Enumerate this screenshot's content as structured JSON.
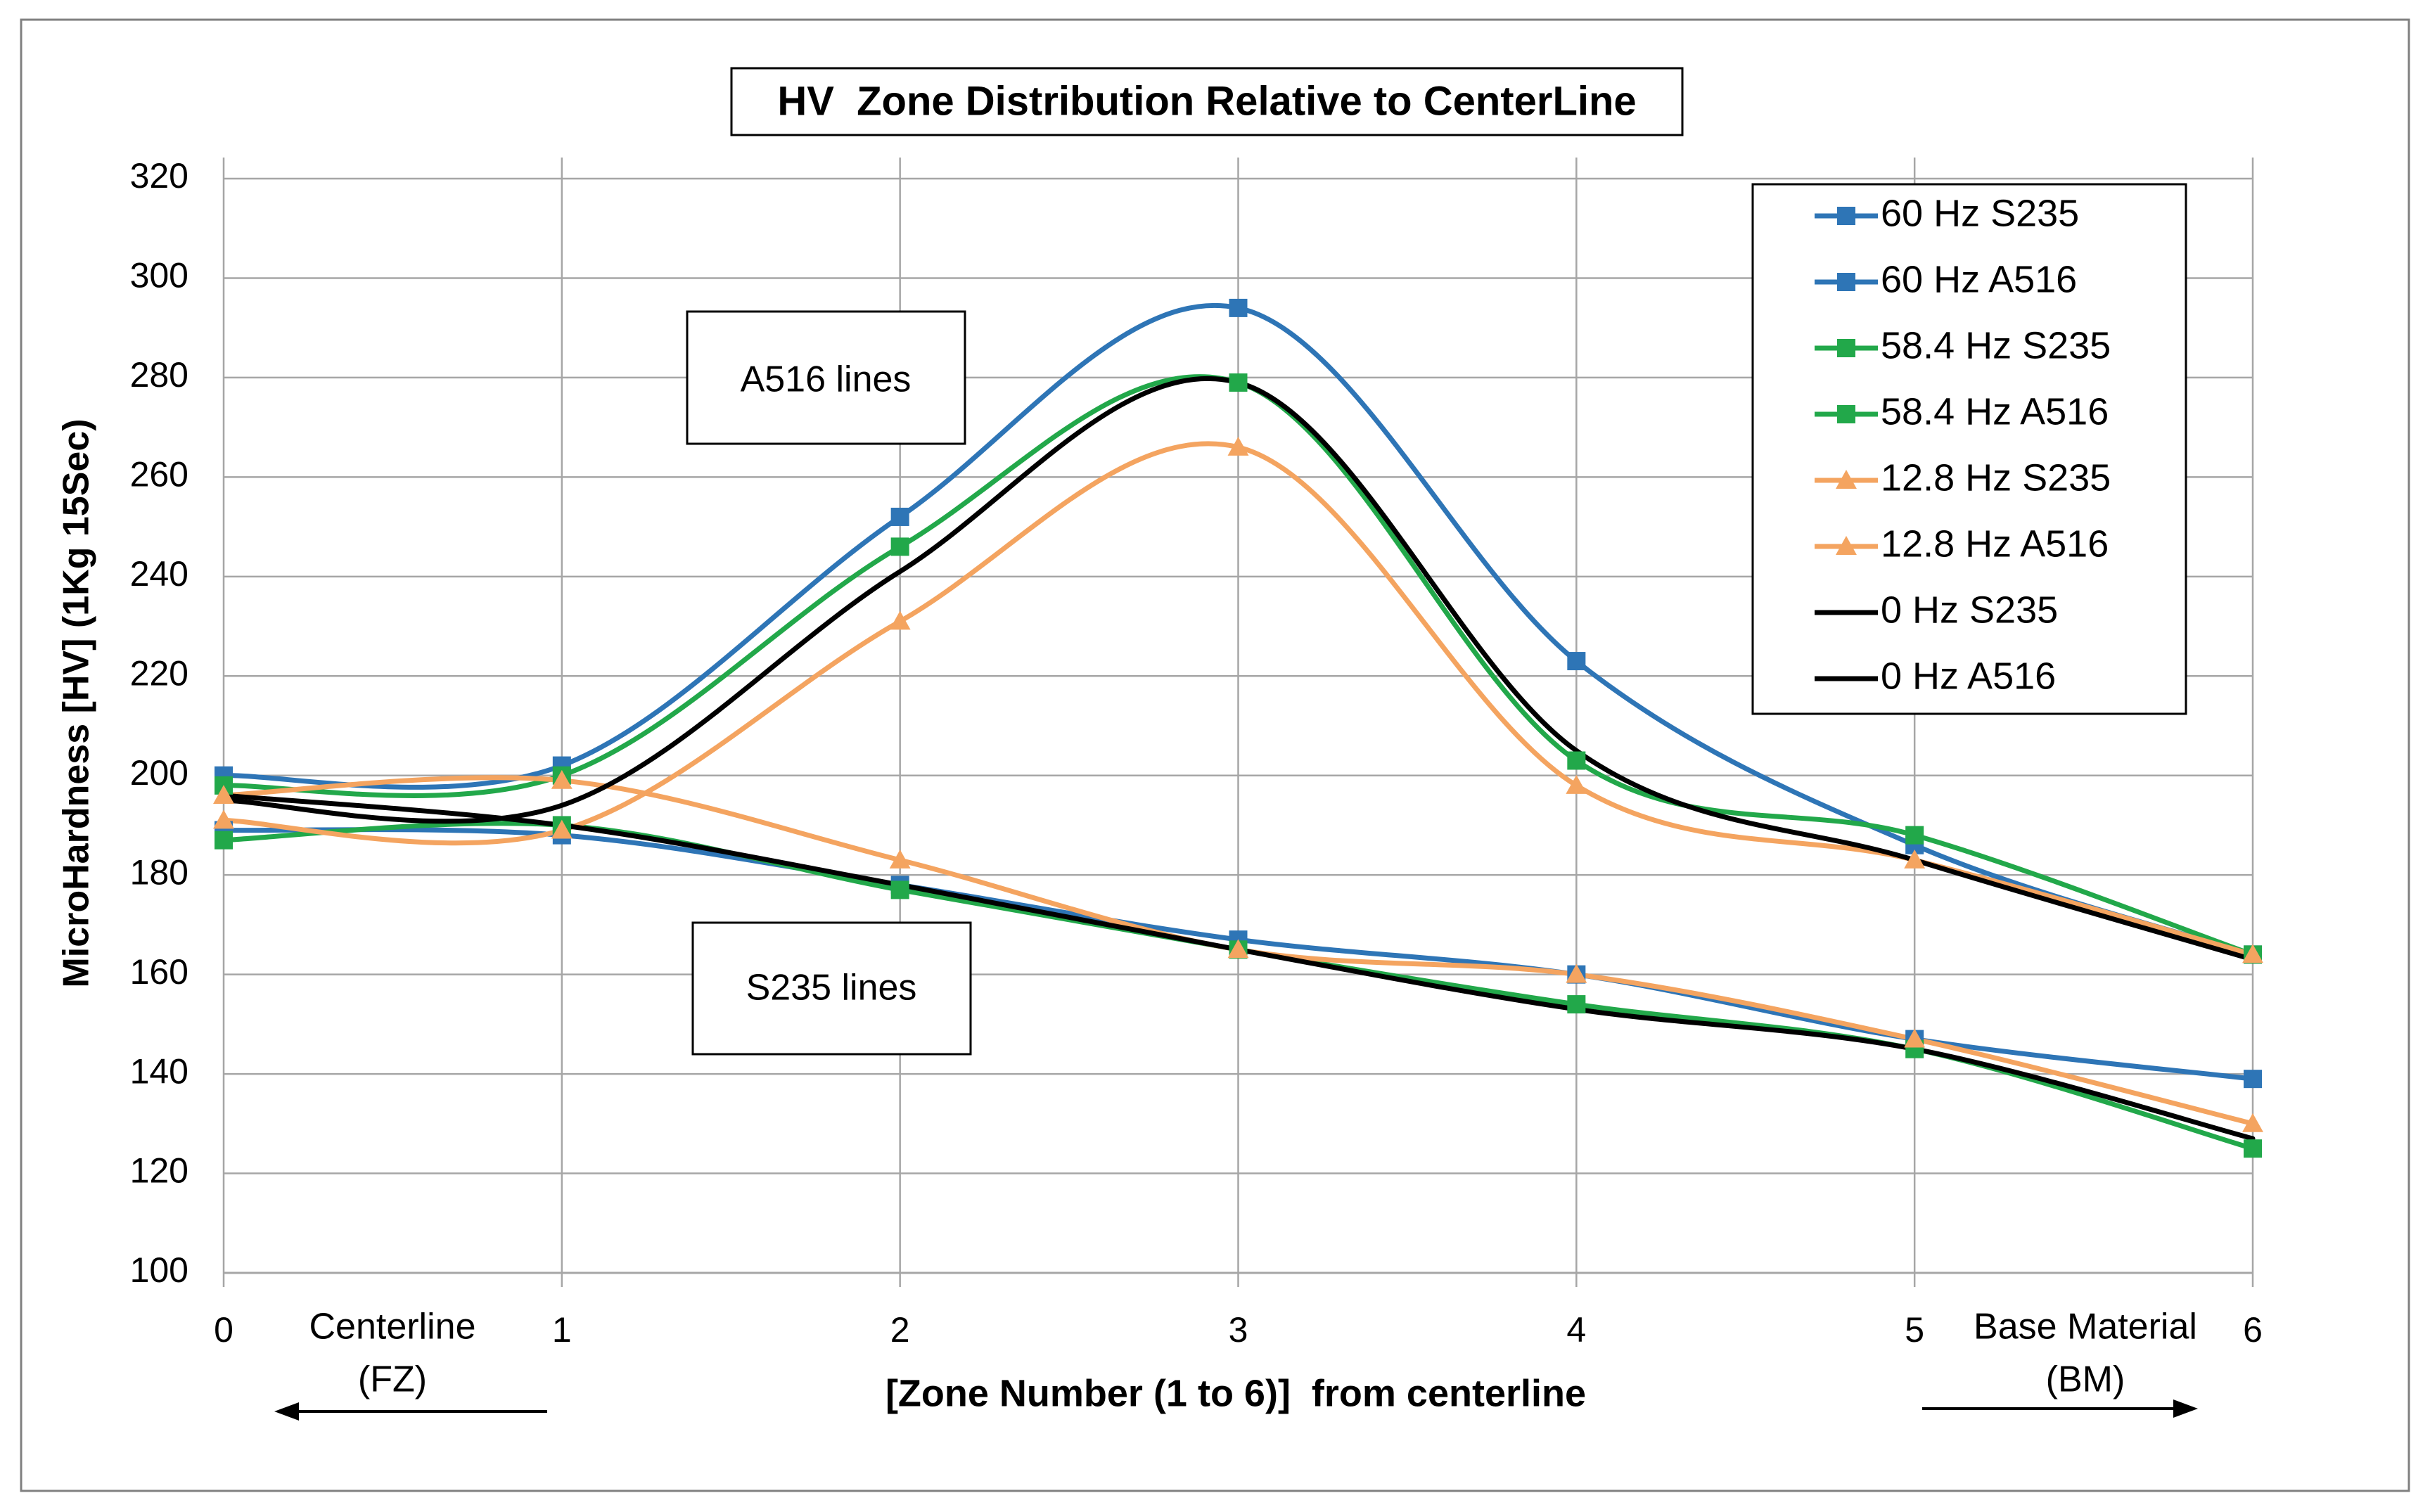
{
  "chart_data": {
    "type": "line",
    "title": "HV  Zone Distribution Relative to CenterLine",
    "xlabel": "[Zone Number (1 to 6)]  from centerline",
    "ylabel": "MicroHardness [HV] (1Kg 15Sec)",
    "x": [
      0,
      1,
      2,
      3,
      4,
      5,
      6
    ],
    "x_tick_labels": [
      "0",
      "1",
      "2",
      "3",
      "4",
      "5",
      "6"
    ],
    "xlim": [
      0,
      6
    ],
    "ylim": [
      100,
      320
    ],
    "y_ticks": [
      100,
      120,
      140,
      160,
      180,
      200,
      220,
      240,
      260,
      280,
      300,
      320
    ],
    "grid": true,
    "legend_position": "top-right",
    "colors": {
      "blue": "#2e75b6",
      "green": "#22a84a",
      "orange": "#f4a460",
      "black": "#000000",
      "grid": "#a6a6a6",
      "frame": "#808080"
    },
    "series": [
      {
        "name": "60 Hz S235",
        "color": "#2e75b6",
        "marker": "square",
        "values": [
          189,
          188,
          178,
          167,
          160,
          147,
          139
        ]
      },
      {
        "name": "60 Hz A516",
        "color": "#2e75b6",
        "marker": "square",
        "values": [
          200,
          202,
          252,
          294,
          223,
          186,
          164
        ]
      },
      {
        "name": "58.4 Hz S235",
        "color": "#22a84a",
        "marker": "square",
        "values": [
          187,
          190,
          177,
          165,
          154,
          145,
          125
        ]
      },
      {
        "name": "58.4 Hz A516",
        "color": "#22a84a",
        "marker": "square",
        "values": [
          198,
          200,
          246,
          279,
          203,
          188,
          164
        ]
      },
      {
        "name": "12.8 Hz S235",
        "color": "#f4a460",
        "marker": "triangle",
        "values": [
          196,
          199,
          183,
          165,
          160,
          147,
          130
        ]
      },
      {
        "name": "12.8 Hz A516",
        "color": "#f4a460",
        "marker": "triangle",
        "values": [
          191,
          189,
          231,
          266,
          198,
          183,
          164
        ]
      },
      {
        "name": "0 Hz S235",
        "color": "#000000",
        "marker": "none",
        "values": [
          196,
          190,
          178,
          165,
          153,
          145,
          127
        ]
      },
      {
        "name": "0 Hz A516",
        "color": "#000000",
        "marker": "none",
        "values": [
          195,
          194,
          241,
          279,
          205,
          183,
          163
        ]
      }
    ],
    "annotations": [
      {
        "text": "A516 lines"
      },
      {
        "text": "S235 lines"
      },
      {
        "text": "Centerline"
      },
      {
        "text": "(FZ)"
      },
      {
        "text": "Base Material"
      },
      {
        "text": "(BM)"
      }
    ]
  }
}
